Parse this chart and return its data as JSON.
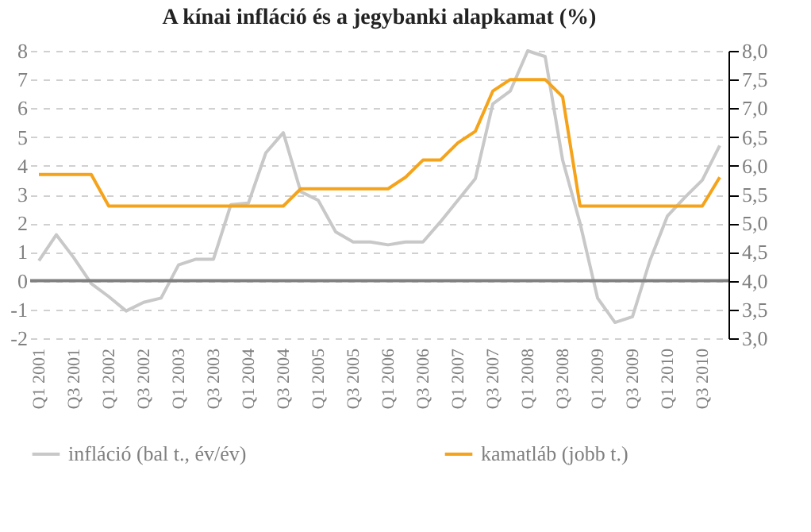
{
  "chart_data": {
    "type": "line",
    "title": "A kínai infláció és a jegybanki alapkamat (%)",
    "categories": [
      "Q1 2001",
      null,
      "Q3 2001",
      null,
      "Q1 2002",
      null,
      "Q3 2002",
      null,
      "Q1 2003",
      null,
      "Q3 2003",
      null,
      "Q1 2004",
      null,
      "Q3 2004",
      null,
      "Q1 2005",
      null,
      "Q3 2005",
      null,
      "Q1 2006",
      null,
      "Q3 2006",
      null,
      "Q1 2007",
      null,
      "Q3 2007",
      null,
      "Q1 2008",
      null,
      "Q3 2008",
      null,
      "Q1 2009",
      null,
      "Q3 2009",
      null,
      "Q1 2010",
      null,
      "Q3 2010",
      null
    ],
    "series": [
      {
        "name": "infláció (bal t., év/év)",
        "color": "#c8c8c8",
        "values": [
          0.7,
          1.6,
          0.8,
          -0.1,
          -0.55,
          -1.05,
          -0.75,
          -0.6,
          0.55,
          0.75,
          0.75,
          2.65,
          2.7,
          4.45,
          5.15,
          3.1,
          2.8,
          1.7,
          1.35,
          1.35,
          1.25,
          1.35,
          1.35,
          2.05,
          2.8,
          3.55,
          6.15,
          6.6,
          8.0,
          7.8,
          4.2,
          2.0,
          -0.6,
          -1.45,
          -1.25,
          0.7,
          2.25,
          2.9,
          3.5,
          4.7
        ]
      },
      {
        "name": "kamatláb (jobb t.)",
        "color": "#f5a31a",
        "axis": "y2",
        "values": [
          5.85,
          5.85,
          5.85,
          5.85,
          5.3,
          5.3,
          5.3,
          5.3,
          5.3,
          5.3,
          5.3,
          5.3,
          5.3,
          5.3,
          5.3,
          5.6,
          5.6,
          5.6,
          5.6,
          5.6,
          5.6,
          5.8,
          6.1,
          6.1,
          6.4,
          6.6,
          7.3,
          7.5,
          7.5,
          7.5,
          7.2,
          5.3,
          5.3,
          5.3,
          5.3,
          5.3,
          5.3,
          5.3,
          5.3,
          5.8
        ]
      }
    ],
    "ylim": [
      -2,
      8
    ],
    "yticks": [
      -2,
      -1,
      0,
      1,
      2,
      3,
      4,
      5,
      6,
      7,
      8
    ],
    "y2lim": [
      3,
      8
    ],
    "y2ticks": [
      {
        "value": 3,
        "label": "3,0"
      },
      {
        "value": 3.5,
        "label": "3,5"
      },
      {
        "value": 4,
        "label": "4,0"
      },
      {
        "value": 4.5,
        "label": "4,5"
      },
      {
        "value": 5,
        "label": "5,0"
      },
      {
        "value": 5.5,
        "label": "5,5"
      },
      {
        "value": 6,
        "label": "6,0"
      },
      {
        "value": 6.5,
        "label": "6,5"
      },
      {
        "value": 7,
        "label": "7,0"
      },
      {
        "value": 7.5,
        "label": "7,5"
      },
      {
        "value": 8,
        "label": "8,0"
      }
    ],
    "ref_lines": [
      {
        "axis": "y",
        "value": 0,
        "color": "#808080"
      }
    ],
    "grid": "y",
    "legend": "bottom",
    "line_style": "solid",
    "marker": "none"
  }
}
